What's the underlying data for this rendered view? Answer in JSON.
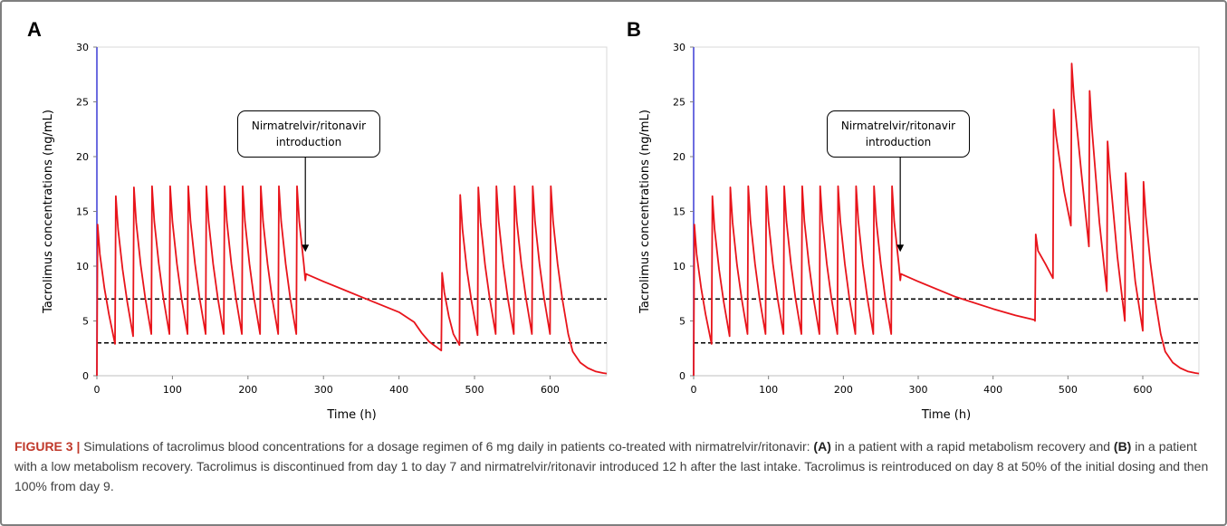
{
  "panels": [
    {
      "letter": "A",
      "chart_data": {
        "type": "line",
        "title": "",
        "xlabel": "Time (h)",
        "ylabel": "Tacrolimus concentrations (ng/mL)",
        "xlim": [
          0,
          675
        ],
        "ylim": [
          0,
          30
        ],
        "xticks": [
          0,
          100,
          200,
          300,
          400,
          500,
          600
        ],
        "yticks": [
          0,
          5,
          10,
          15,
          20,
          25,
          30
        ],
        "grid": false,
        "reference_lines": [
          7,
          3
        ],
        "annotation": {
          "text": "Nirmatrelvir/ritonavir\nintroduction",
          "x": 276,
          "y": 11.3
        },
        "series": [
          {
            "color": "#e8141b",
            "x": [
              0,
              1,
              4,
              10,
              16,
              24,
              25,
              28,
              34,
              40,
              48,
              49,
              52,
              58,
              64,
              72,
              73,
              76,
              82,
              88,
              96,
              97,
              100,
              106,
              112,
              120,
              121,
              124,
              130,
              136,
              144,
              145,
              148,
              154,
              160,
              168,
              169,
              172,
              178,
              184,
              192,
              193,
              196,
              202,
              208,
              216,
              217,
              220,
              226,
              232,
              240,
              241,
              244,
              250,
              256,
              264,
              265,
              268,
              274,
              276,
              277,
              280,
              300,
              350,
              400,
              420,
              430,
              440,
              450,
              456,
              457,
              460,
              466,
              472,
              480,
              481,
              484,
              490,
              496,
              504,
              505,
              508,
              514,
              520,
              528,
              529,
              532,
              538,
              544,
              552,
              553,
              556,
              562,
              568,
              576,
              577,
              580,
              586,
              592,
              600,
              601,
              604,
              610,
              616,
              624,
              630,
              640,
              650,
              660,
              670,
              675
            ],
            "y": [
              0,
              13.8,
              11.1,
              8.0,
              5.6,
              2.9,
              16.4,
              13.4,
              9.7,
              6.8,
              3.6,
              17.2,
              14.0,
              10.1,
              7.1,
              3.8,
              17.3,
              14.1,
              10.2,
              7.1,
              3.8,
              17.3,
              14.1,
              10.2,
              7.1,
              3.8,
              17.3,
              14.1,
              10.2,
              7.1,
              3.8,
              17.3,
              14.1,
              10.2,
              7.1,
              3.8,
              17.3,
              14.1,
              10.2,
              7.1,
              3.8,
              17.3,
              14.1,
              10.2,
              7.1,
              3.8,
              17.3,
              14.1,
              10.2,
              7.1,
              3.8,
              17.3,
              14.1,
              10.2,
              7.1,
              3.8,
              17.3,
              14.1,
              10.2,
              8.7,
              9.3,
              9.2,
              8.6,
              7.2,
              5.8,
              4.9,
              3.9,
              3.1,
              2.6,
              2.3,
              9.4,
              7.6,
              5.4,
              3.8,
              2.8,
              16.5,
              13.4,
              9.6,
              6.8,
              3.7,
              17.2,
              14.0,
              10.1,
              7.1,
              3.8,
              17.3,
              14.1,
              10.2,
              7.1,
              3.8,
              17.3,
              14.1,
              10.2,
              7.1,
              3.8,
              17.3,
              14.1,
              10.2,
              7.1,
              3.8,
              17.3,
              14.1,
              10.2,
              7.1,
              3.8,
              2.2,
              1.2,
              0.7,
              0.4,
              0.25,
              0.2
            ]
          }
        ]
      }
    },
    {
      "letter": "B",
      "chart_data": {
        "type": "line",
        "title": "",
        "xlabel": "Time (h)",
        "ylabel": "Tacrolimus concentrations (ng/mL)",
        "xlim": [
          0,
          675
        ],
        "ylim": [
          0,
          30
        ],
        "xticks": [
          0,
          100,
          200,
          300,
          400,
          500,
          600
        ],
        "yticks": [
          0,
          5,
          10,
          15,
          20,
          25,
          30
        ],
        "grid": false,
        "reference_lines": [
          7,
          3
        ],
        "annotation": {
          "text": "Nirmatrelvir/ritonavir\nintroduction",
          "x": 276,
          "y": 11.3
        },
        "series": [
          {
            "color": "#e8141b",
            "x": [
              0,
              1,
              4,
              10,
              16,
              24,
              25,
              28,
              34,
              40,
              48,
              49,
              52,
              58,
              64,
              72,
              73,
              76,
              82,
              88,
              96,
              97,
              100,
              106,
              112,
              120,
              121,
              124,
              130,
              136,
              144,
              145,
              148,
              154,
              160,
              168,
              169,
              172,
              178,
              184,
              192,
              193,
              196,
              202,
              208,
              216,
              217,
              220,
              226,
              232,
              240,
              241,
              244,
              250,
              256,
              264,
              265,
              268,
              274,
              276,
              277,
              280,
              300,
              350,
              400,
              430,
              455,
              456,
              457,
              460,
              470,
              480,
              481,
              484,
              495,
              504,
              505,
              508,
              518,
              528,
              529,
              532,
              542,
              552,
              553,
              556,
              566,
              576,
              577,
              580,
              590,
              600,
              601,
              604,
              610,
              616,
              624,
              630,
              640,
              650,
              660,
              670,
              675
            ],
            "y": [
              0,
              13.8,
              11.1,
              8.0,
              5.6,
              2.9,
              16.4,
              13.4,
              9.7,
              6.8,
              3.6,
              17.2,
              14.0,
              10.1,
              7.1,
              3.8,
              17.3,
              14.1,
              10.2,
              7.1,
              3.8,
              17.3,
              14.1,
              10.2,
              7.1,
              3.8,
              17.3,
              14.1,
              10.2,
              7.1,
              3.8,
              17.3,
              14.1,
              10.2,
              7.1,
              3.8,
              17.3,
              14.1,
              10.2,
              7.1,
              3.8,
              17.3,
              14.1,
              10.2,
              7.1,
              3.8,
              17.3,
              14.1,
              10.2,
              7.1,
              3.8,
              17.3,
              14.1,
              10.2,
              7.1,
              3.8,
              17.3,
              14.1,
              10.2,
              8.7,
              9.3,
              9.2,
              8.6,
              7.2,
              6.1,
              5.5,
              5.1,
              5.0,
              12.9,
              11.4,
              10.2,
              8.9,
              24.3,
              22.0,
              16.8,
              13.7,
              28.5,
              25.5,
              18.5,
              11.8,
              26.0,
              22.6,
              14.0,
              7.7,
              21.4,
              18.5,
              10.9,
              5.0,
              18.5,
              15.6,
              8.6,
              4.1,
              17.7,
              14.6,
              10.4,
              7.2,
              3.8,
              2.2,
              1.2,
              0.7,
              0.4,
              0.25,
              0.2
            ]
          }
        ]
      }
    }
  ],
  "caption": {
    "figure_label": "FIGURE 3 |",
    "text_1": " Simulations of tacrolimus blood concentrations for a dosage regimen of 6 mg daily in patients co-treated with nirmatrelvir/ritonavir: ",
    "bold_a": "(A)",
    "text_2": " in a patient with a rapid metabolism recovery and ",
    "bold_b": "(B)",
    "text_3": " in a patient with a low metabolism recovery. Tacrolimus is discontinued from day 1 to day 7 and nirmatrelvir/ritonavir introduced 12 h after the last intake. Tacrolimus is reintroduced on day 8 at 50% of the initial dosing and then 100% from day 9."
  },
  "colors": {
    "line": "#e8141b",
    "y_axis": "#3b3bd6",
    "reference": "#000000"
  }
}
